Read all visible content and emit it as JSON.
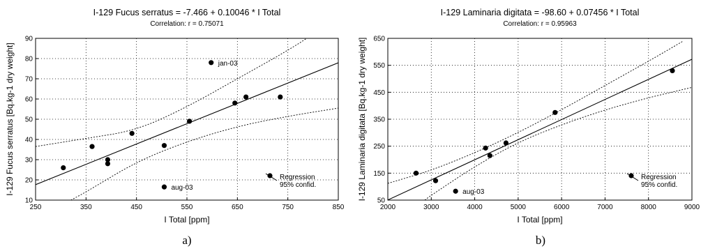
{
  "chart_data": [
    {
      "type": "scatter",
      "panel_label": "a)",
      "title": "I-129  Fucus serratus = -7.466 + 0.10046 * I Total",
      "subtitle": "Correlation: r = 0.75071",
      "xlabel": "I Total [ppm]",
      "ylabel": "I-129 Fucus serratus [Bq.kg-1 dry weight]",
      "xlim": [
        250,
        850
      ],
      "ylim": [
        10,
        90
      ],
      "xticks": [
        250,
        350,
        450,
        550,
        650,
        750,
        850
      ],
      "yticks": [
        10,
        20,
        30,
        40,
        50,
        60,
        70,
        80,
        90
      ],
      "regression": {
        "intercept": -7.466,
        "slope": 0.10046
      },
      "confidence_band": {
        "upper": [
          [
            250,
            36.5
          ],
          [
            350,
            40.5
          ],
          [
            450,
            44.5
          ],
          [
            550,
            56
          ],
          [
            650,
            70
          ],
          [
            750,
            84
          ],
          [
            800,
            92
          ]
        ],
        "lower": [
          [
            320,
            10
          ],
          [
            350,
            14
          ],
          [
            450,
            29
          ],
          [
            550,
            39
          ],
          [
            650,
            46.5
          ],
          [
            750,
            51.5
          ],
          [
            850,
            55.5
          ]
        ]
      },
      "points": [
        {
          "x": 305,
          "y": 26
        },
        {
          "x": 362,
          "y": 36.5
        },
        {
          "x": 393,
          "y": 30
        },
        {
          "x": 393,
          "y": 28
        },
        {
          "x": 441,
          "y": 43
        },
        {
          "x": 505,
          "y": 37
        },
        {
          "x": 505,
          "y": 16.5,
          "label": "aug-03"
        },
        {
          "x": 555,
          "y": 49
        },
        {
          "x": 598,
          "y": 78,
          "label": "jan-03"
        },
        {
          "x": 645,
          "y": 58
        },
        {
          "x": 667,
          "y": 61
        },
        {
          "x": 735,
          "y": 61
        }
      ],
      "legend": [
        "Regression",
        "95% confid."
      ],
      "legend_position": "bottom-right"
    },
    {
      "type": "scatter",
      "panel_label": "b)",
      "title": "I-129 Laminaria digitata = -98.60 + 0.07456 * I Total",
      "subtitle": "Correlation: r = 0.95963",
      "xlabel": "I Total [ppm]",
      "ylabel": "I-129 Laminaria digitata [Bq.kg-1 dry weight]",
      "xlim": [
        2000,
        9000
      ],
      "ylim": [
        50,
        650
      ],
      "xticks": [
        2000,
        3000,
        4000,
        5000,
        6000,
        7000,
        8000,
        9000
      ],
      "yticks": [
        50,
        150,
        250,
        350,
        450,
        550,
        650
      ],
      "regression": {
        "intercept": -98.6,
        "slope": 0.07456
      },
      "confidence_band": {
        "upper": [
          [
            2000,
            112
          ],
          [
            3000,
            160
          ],
          [
            4000,
            225
          ],
          [
            5000,
            300
          ],
          [
            6000,
            385
          ],
          [
            7000,
            475
          ],
          [
            8000,
            565
          ],
          [
            8800,
            640
          ]
        ],
        "lower": [
          [
            2850,
            50
          ],
          [
            3000,
            68
          ],
          [
            4000,
            175
          ],
          [
            5000,
            265
          ],
          [
            6000,
            330
          ],
          [
            7000,
            385
          ],
          [
            8000,
            430
          ],
          [
            9000,
            468
          ]
        ]
      },
      "points": [
        {
          "x": 2650,
          "y": 150
        },
        {
          "x": 3100,
          "y": 122
        },
        {
          "x": 3560,
          "y": 83,
          "label": "aug-03"
        },
        {
          "x": 4250,
          "y": 243
        },
        {
          "x": 4350,
          "y": 215
        },
        {
          "x": 4720,
          "y": 262
        },
        {
          "x": 5850,
          "y": 375
        },
        {
          "x": 8550,
          "y": 530
        }
      ],
      "legend": [
        "Regression",
        "95% confid."
      ],
      "legend_position": "bottom-right"
    }
  ]
}
